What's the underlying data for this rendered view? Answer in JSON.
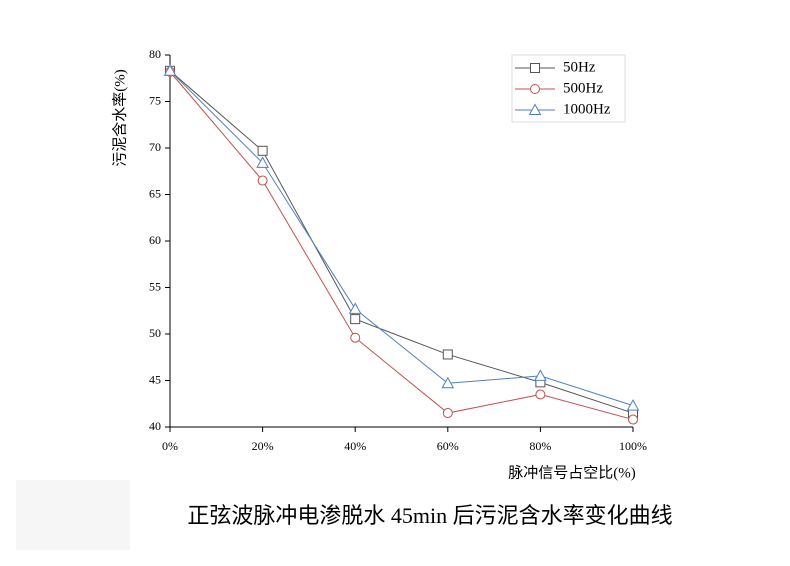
{
  "chart_data": {
    "type": "line",
    "title": "正弦波脉冲电渗脱水 45min 后污泥含水率变化曲线",
    "x_label": "脉冲信号占空比(%)",
    "y_label": "污泥含水率(%)",
    "categories": [
      "0%",
      "20%",
      "40%",
      "60%",
      "80%",
      "100%"
    ],
    "series": [
      {
        "name": "50Hz",
        "color": "#555555",
        "marker": "square",
        "values": [
          78.3,
          69.7,
          51.6,
          47.8,
          44.8,
          41.5
        ]
      },
      {
        "name": "500Hz",
        "color": "#c0504d",
        "marker": "circle",
        "values": [
          78.2,
          66.5,
          49.6,
          41.5,
          43.5,
          40.8
        ]
      },
      {
        "name": "1000Hz",
        "color": "#4f7fbf",
        "marker": "triangle",
        "values": [
          78.3,
          68.4,
          52.7,
          44.7,
          45.5,
          42.3
        ]
      }
    ],
    "ylim": [
      40,
      80
    ],
    "yticks": [
      40,
      45,
      50,
      55,
      60,
      65,
      70,
      75,
      80
    ],
    "grid": false,
    "legend": "top-right"
  }
}
